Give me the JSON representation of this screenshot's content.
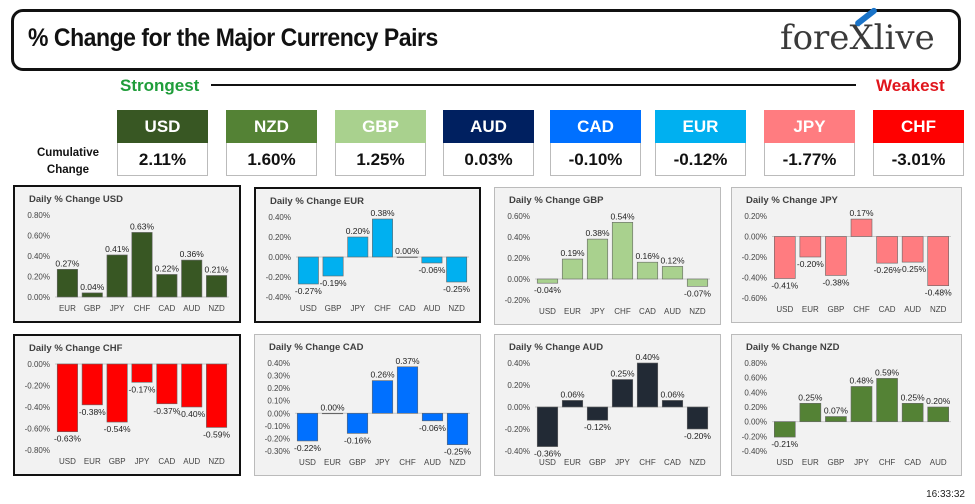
{
  "header": {
    "title": "% Change for the Major Currency Pairs",
    "logo": "forexlive"
  },
  "labels": {
    "strongest": "Strongest",
    "weakest": "Weakest",
    "cumulative": "Cumulative Change"
  },
  "ranking": [
    {
      "currency": "USD",
      "value": "2.11%",
      "color": "#385723"
    },
    {
      "currency": "NZD",
      "value": "1.60%",
      "color": "#548235"
    },
    {
      "currency": "GBP",
      "value": "1.25%",
      "color": "#a9d18e"
    },
    {
      "currency": "AUD",
      "value": "0.03%",
      "color": "#002060"
    },
    {
      "currency": "CAD",
      "value": "-0.10%",
      "color": "#0070ff"
    },
    {
      "currency": "EUR",
      "value": "-0.12%",
      "color": "#00b0f0"
    },
    {
      "currency": "JPY",
      "value": "-1.77%",
      "color": "#ff7c80"
    },
    {
      "currency": "CHF",
      "value": "-3.01%",
      "color": "#ff0000"
    }
  ],
  "chart_data": [
    {
      "type": "bar",
      "title": "Daily % Change USD",
      "categories": [
        "EUR",
        "GBP",
        "JPY",
        "CHF",
        "CAD",
        "AUD",
        "NZD"
      ],
      "values": [
        0.27,
        0.04,
        0.41,
        0.63,
        0.22,
        0.36,
        0.21
      ],
      "value_labels": [
        "0.27%",
        "0.04%",
        "0.41%",
        "0.63%",
        "0.22%",
        "0.36%",
        "0.21%"
      ],
      "ylim": [
        0,
        0.8
      ],
      "ticks": [
        0.8,
        0.6,
        0.4,
        0.2,
        0.0
      ],
      "tick_labels": [
        "0.80%",
        "0.60%",
        "0.40%",
        "0.20%",
        "0.00%"
      ],
      "color": "#385723"
    },
    {
      "type": "bar",
      "title": "Daily % Change EUR",
      "categories": [
        "USD",
        "GBP",
        "JPY",
        "CHF",
        "CAD",
        "AUD",
        "NZD"
      ],
      "values": [
        -0.27,
        -0.19,
        0.2,
        0.38,
        0.0,
        -0.06,
        -0.25
      ],
      "value_labels": [
        "-0.27%",
        "-0.19%",
        "0.20%",
        "0.38%",
        "0.00%",
        "-0.06%",
        "-0.25%"
      ],
      "ylim": [
        -0.4,
        0.4
      ],
      "ticks": [
        0.4,
        0.2,
        0.0,
        -0.2,
        -0.4
      ],
      "tick_labels": [
        "0.40%",
        "0.20%",
        "0.00%",
        "-0.20%",
        "-0.40%"
      ],
      "color": "#00b0f0"
    },
    {
      "type": "bar",
      "title": "Daily % Change GBP",
      "categories": [
        "USD",
        "EUR",
        "JPY",
        "CHF",
        "CAD",
        "AUD",
        "NZD"
      ],
      "values": [
        -0.04,
        0.19,
        0.38,
        0.54,
        0.16,
        0.12,
        -0.07
      ],
      "value_labels": [
        "-0.04%",
        "0.19%",
        "0.38%",
        "0.54%",
        "0.16%",
        "0.12%",
        "-0.07%"
      ],
      "ylim": [
        -0.2,
        0.6
      ],
      "ticks": [
        0.6,
        0.4,
        0.2,
        0.0,
        -0.2
      ],
      "tick_labels": [
        "0.60%",
        "0.40%",
        "0.20%",
        "0.00%",
        "-0.20%"
      ],
      "color": "#a9d18e"
    },
    {
      "type": "bar",
      "title": "Daily % Change JPY",
      "categories": [
        "USD",
        "EUR",
        "GBP",
        "CHF",
        "CAD",
        "AUD",
        "NZD"
      ],
      "values": [
        -0.41,
        -0.2,
        -0.38,
        0.17,
        -0.26,
        -0.25,
        -0.48
      ],
      "value_labels": [
        "-0.41%",
        "-0.20%",
        "-0.38%",
        "0.17%",
        "-0.26%",
        "-0.25%",
        "-0.48%"
      ],
      "ylim": [
        -0.6,
        0.2
      ],
      "ticks": [
        0.2,
        0.0,
        -0.2,
        -0.4,
        -0.6
      ],
      "tick_labels": [
        "0.20%",
        "0.00%",
        "-0.20%",
        "-0.40%",
        "-0.60%"
      ],
      "color": "#ff7c80"
    },
    {
      "type": "bar",
      "title": "Daily % Change CHF",
      "categories": [
        "USD",
        "EUR",
        "GBP",
        "JPY",
        "CAD",
        "AUD",
        "NZD"
      ],
      "values": [
        -0.63,
        -0.38,
        -0.54,
        -0.17,
        -0.37,
        -0.4,
        -0.59
      ],
      "value_labels": [
        "-0.63%",
        "-0.38%",
        "-0.54%",
        "-0.17%",
        "-0.37%",
        "-0.40%",
        "-0.59%"
      ],
      "ylim": [
        -0.8,
        0
      ],
      "ticks": [
        0.0,
        -0.2,
        -0.4,
        -0.6,
        -0.8
      ],
      "tick_labels": [
        "0.00%",
        "-0.20%",
        "-0.40%",
        "-0.60%",
        "-0.80%"
      ],
      "color": "#ff0000"
    },
    {
      "type": "bar",
      "title": "Daily % Change CAD",
      "categories": [
        "USD",
        "EUR",
        "GBP",
        "JPY",
        "CHF",
        "AUD",
        "NZD"
      ],
      "values": [
        -0.22,
        0.0,
        -0.16,
        0.26,
        0.37,
        -0.06,
        -0.25
      ],
      "value_labels": [
        "-0.22%",
        "0.00%",
        "-0.16%",
        "0.26%",
        "0.37%",
        "-0.06%",
        "-0.25%"
      ],
      "ylim": [
        -0.3,
        0.4
      ],
      "ticks": [
        0.4,
        0.3,
        0.2,
        0.1,
        0.0,
        -0.1,
        -0.2,
        -0.3
      ],
      "tick_labels": [
        "0.40%",
        "0.30%",
        "0.20%",
        "0.10%",
        "0.00%",
        "-0.10%",
        "-0.20%",
        "-0.30%"
      ],
      "color": "#0070ff"
    },
    {
      "type": "bar",
      "title": "Daily % Change AUD",
      "categories": [
        "USD",
        "EUR",
        "GBP",
        "JPY",
        "CHF",
        "CAD",
        "NZD"
      ],
      "values": [
        -0.36,
        0.06,
        -0.12,
        0.25,
        0.4,
        0.06,
        -0.2
      ],
      "value_labels": [
        "-0.36%",
        "0.06%",
        "-0.12%",
        "0.25%",
        "0.40%",
        "0.06%",
        "-0.20%"
      ],
      "ylim": [
        -0.4,
        0.4
      ],
      "ticks": [
        0.4,
        0.2,
        0.0,
        -0.2,
        -0.4
      ],
      "tick_labels": [
        "0.40%",
        "0.20%",
        "0.00%",
        "-0.20%",
        "-0.40%"
      ],
      "color": "#222a35"
    },
    {
      "type": "bar",
      "title": "Daily % Change NZD",
      "categories": [
        "USD",
        "EUR",
        "GBP",
        "JPY",
        "CHF",
        "CAD",
        "AUD"
      ],
      "values": [
        -0.21,
        0.25,
        0.07,
        0.48,
        0.59,
        0.25,
        0.2
      ],
      "value_labels": [
        "-0.21%",
        "0.25%",
        "0.07%",
        "0.48%",
        "0.59%",
        "0.25%",
        "0.20%"
      ],
      "ylim": [
        -0.4,
        0.8
      ],
      "ticks": [
        0.8,
        0.6,
        0.4,
        0.2,
        0.0,
        -0.2,
        -0.4
      ],
      "tick_labels": [
        "0.80%",
        "0.60%",
        "0.40%",
        "0.20%",
        "0.00%",
        "-0.20%",
        "-0.40%"
      ],
      "color": "#548235"
    }
  ],
  "timestamp": "16:33:32"
}
